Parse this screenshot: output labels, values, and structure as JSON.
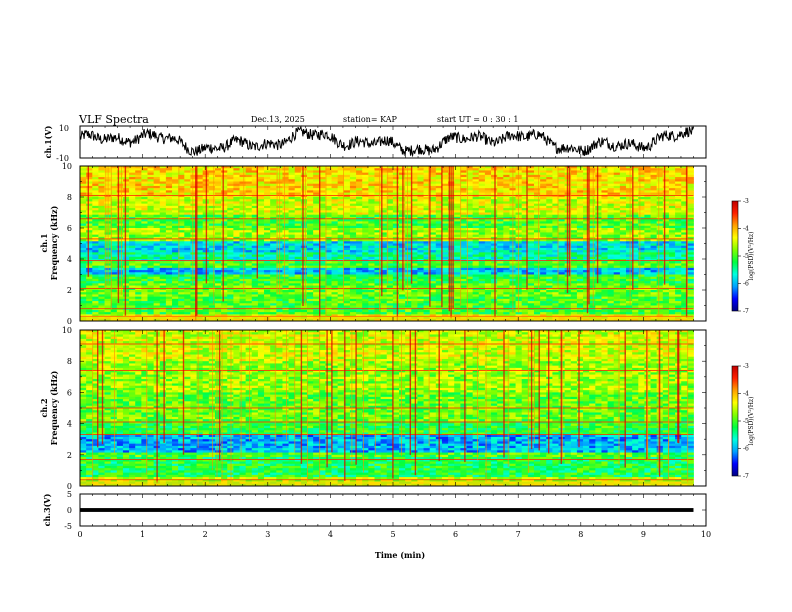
{
  "header": {
    "title": "VLF Spectra",
    "date": "Dec.13, 2025",
    "station": "station= KAP",
    "start_ut": "start  UT  =   0 : 30 : 1"
  },
  "chart_data": [
    {
      "type": "line",
      "name": "ch1-waveform",
      "ylabel": "ch.1(V)",
      "ylim": [
        -10,
        10
      ],
      "yticks": [
        "10",
        "-10"
      ],
      "xlim": [
        0,
        10
      ],
      "x_end": 9.8
    },
    {
      "type": "heatmap",
      "name": "ch1-spectrogram",
      "ylabel_channel": "ch.1",
      "ylabel": "Frequency (kHz)",
      "ylim": [
        0,
        10
      ],
      "yticks": [
        "0",
        "2",
        "4",
        "6",
        "8",
        "10"
      ],
      "xlim": [
        0,
        10
      ],
      "x_end": 9.8,
      "bands_kHz": [
        {
          "from": 0,
          "to": 0.5,
          "level": -4.4
        },
        {
          "from": 0.5,
          "to": 1.6,
          "level": -5.0
        },
        {
          "from": 1.6,
          "to": 2.4,
          "level": -4.9
        },
        {
          "from": 2.4,
          "to": 3.0,
          "level": -5.1
        },
        {
          "from": 3.0,
          "to": 3.5,
          "level": -5.9
        },
        {
          "from": 3.5,
          "to": 3.9,
          "level": -5.0
        },
        {
          "from": 3.9,
          "to": 4.5,
          "level": -5.5
        },
        {
          "from": 4.5,
          "to": 5.2,
          "level": -5.8
        },
        {
          "from": 5.2,
          "to": 6.0,
          "level": -4.7
        },
        {
          "from": 6.0,
          "to": 6.8,
          "level": -5.0
        },
        {
          "from": 6.8,
          "to": 8.0,
          "level": -4.5
        },
        {
          "from": 8.0,
          "to": 10.0,
          "level": -4.2
        }
      ],
      "lines_kHz": [
        0.3,
        0.8,
        2.1,
        3.9,
        5.3,
        6.6,
        8.1
      ]
    },
    {
      "type": "heatmap",
      "name": "ch2-spectrogram",
      "ylabel_channel": "ch.2",
      "ylabel": "Frequency (kHz)",
      "ylim": [
        0,
        10
      ],
      "yticks": [
        "0",
        "2",
        "4",
        "6",
        "8",
        "10"
      ],
      "xlim": [
        0,
        10
      ],
      "x_end": 9.8,
      "bands_kHz": [
        {
          "from": 0,
          "to": 0.6,
          "level": -4.6
        },
        {
          "from": 0.6,
          "to": 1.8,
          "level": -5.2
        },
        {
          "from": 1.8,
          "to": 2.2,
          "level": -5.0
        },
        {
          "from": 2.2,
          "to": 3.3,
          "level": -6.0
        },
        {
          "from": 3.3,
          "to": 4.2,
          "level": -5.1
        },
        {
          "from": 4.2,
          "to": 6.0,
          "level": -4.9
        },
        {
          "from": 6.0,
          "to": 8.0,
          "level": -4.7
        },
        {
          "from": 8.0,
          "to": 10.0,
          "level": -4.5
        }
      ],
      "lines_kHz": [
        0.4,
        1.7,
        3.3,
        4.1,
        5.0,
        7.4,
        9.1
      ]
    },
    {
      "type": "line",
      "name": "ch3-waveform",
      "ylabel": "ch.3(V)",
      "ylim": [
        -5,
        5
      ],
      "yticks": [
        "5",
        "0",
        "-5"
      ],
      "xlim": [
        0,
        10
      ],
      "x_end": 9.8,
      "xlabel": "Time (min)",
      "xticks": [
        "0",
        "1",
        "2",
        "3",
        "4",
        "5",
        "6",
        "7",
        "8",
        "9",
        "10"
      ],
      "center_V": 0,
      "band_V": 0.6
    }
  ],
  "colorbar": {
    "label": "log(PSD)(V²/Hz)",
    "range": [
      -7,
      -3
    ],
    "ticks": [
      "-3",
      "-4",
      "-5",
      "-6",
      "-7"
    ],
    "colors": [
      "#000080",
      "#0000ff",
      "#00a0ff",
      "#00ffe0",
      "#00ff40",
      "#80ff00",
      "#ffff00",
      "#ffa000",
      "#ff2000",
      "#c00000",
      "#ffffff"
    ]
  }
}
